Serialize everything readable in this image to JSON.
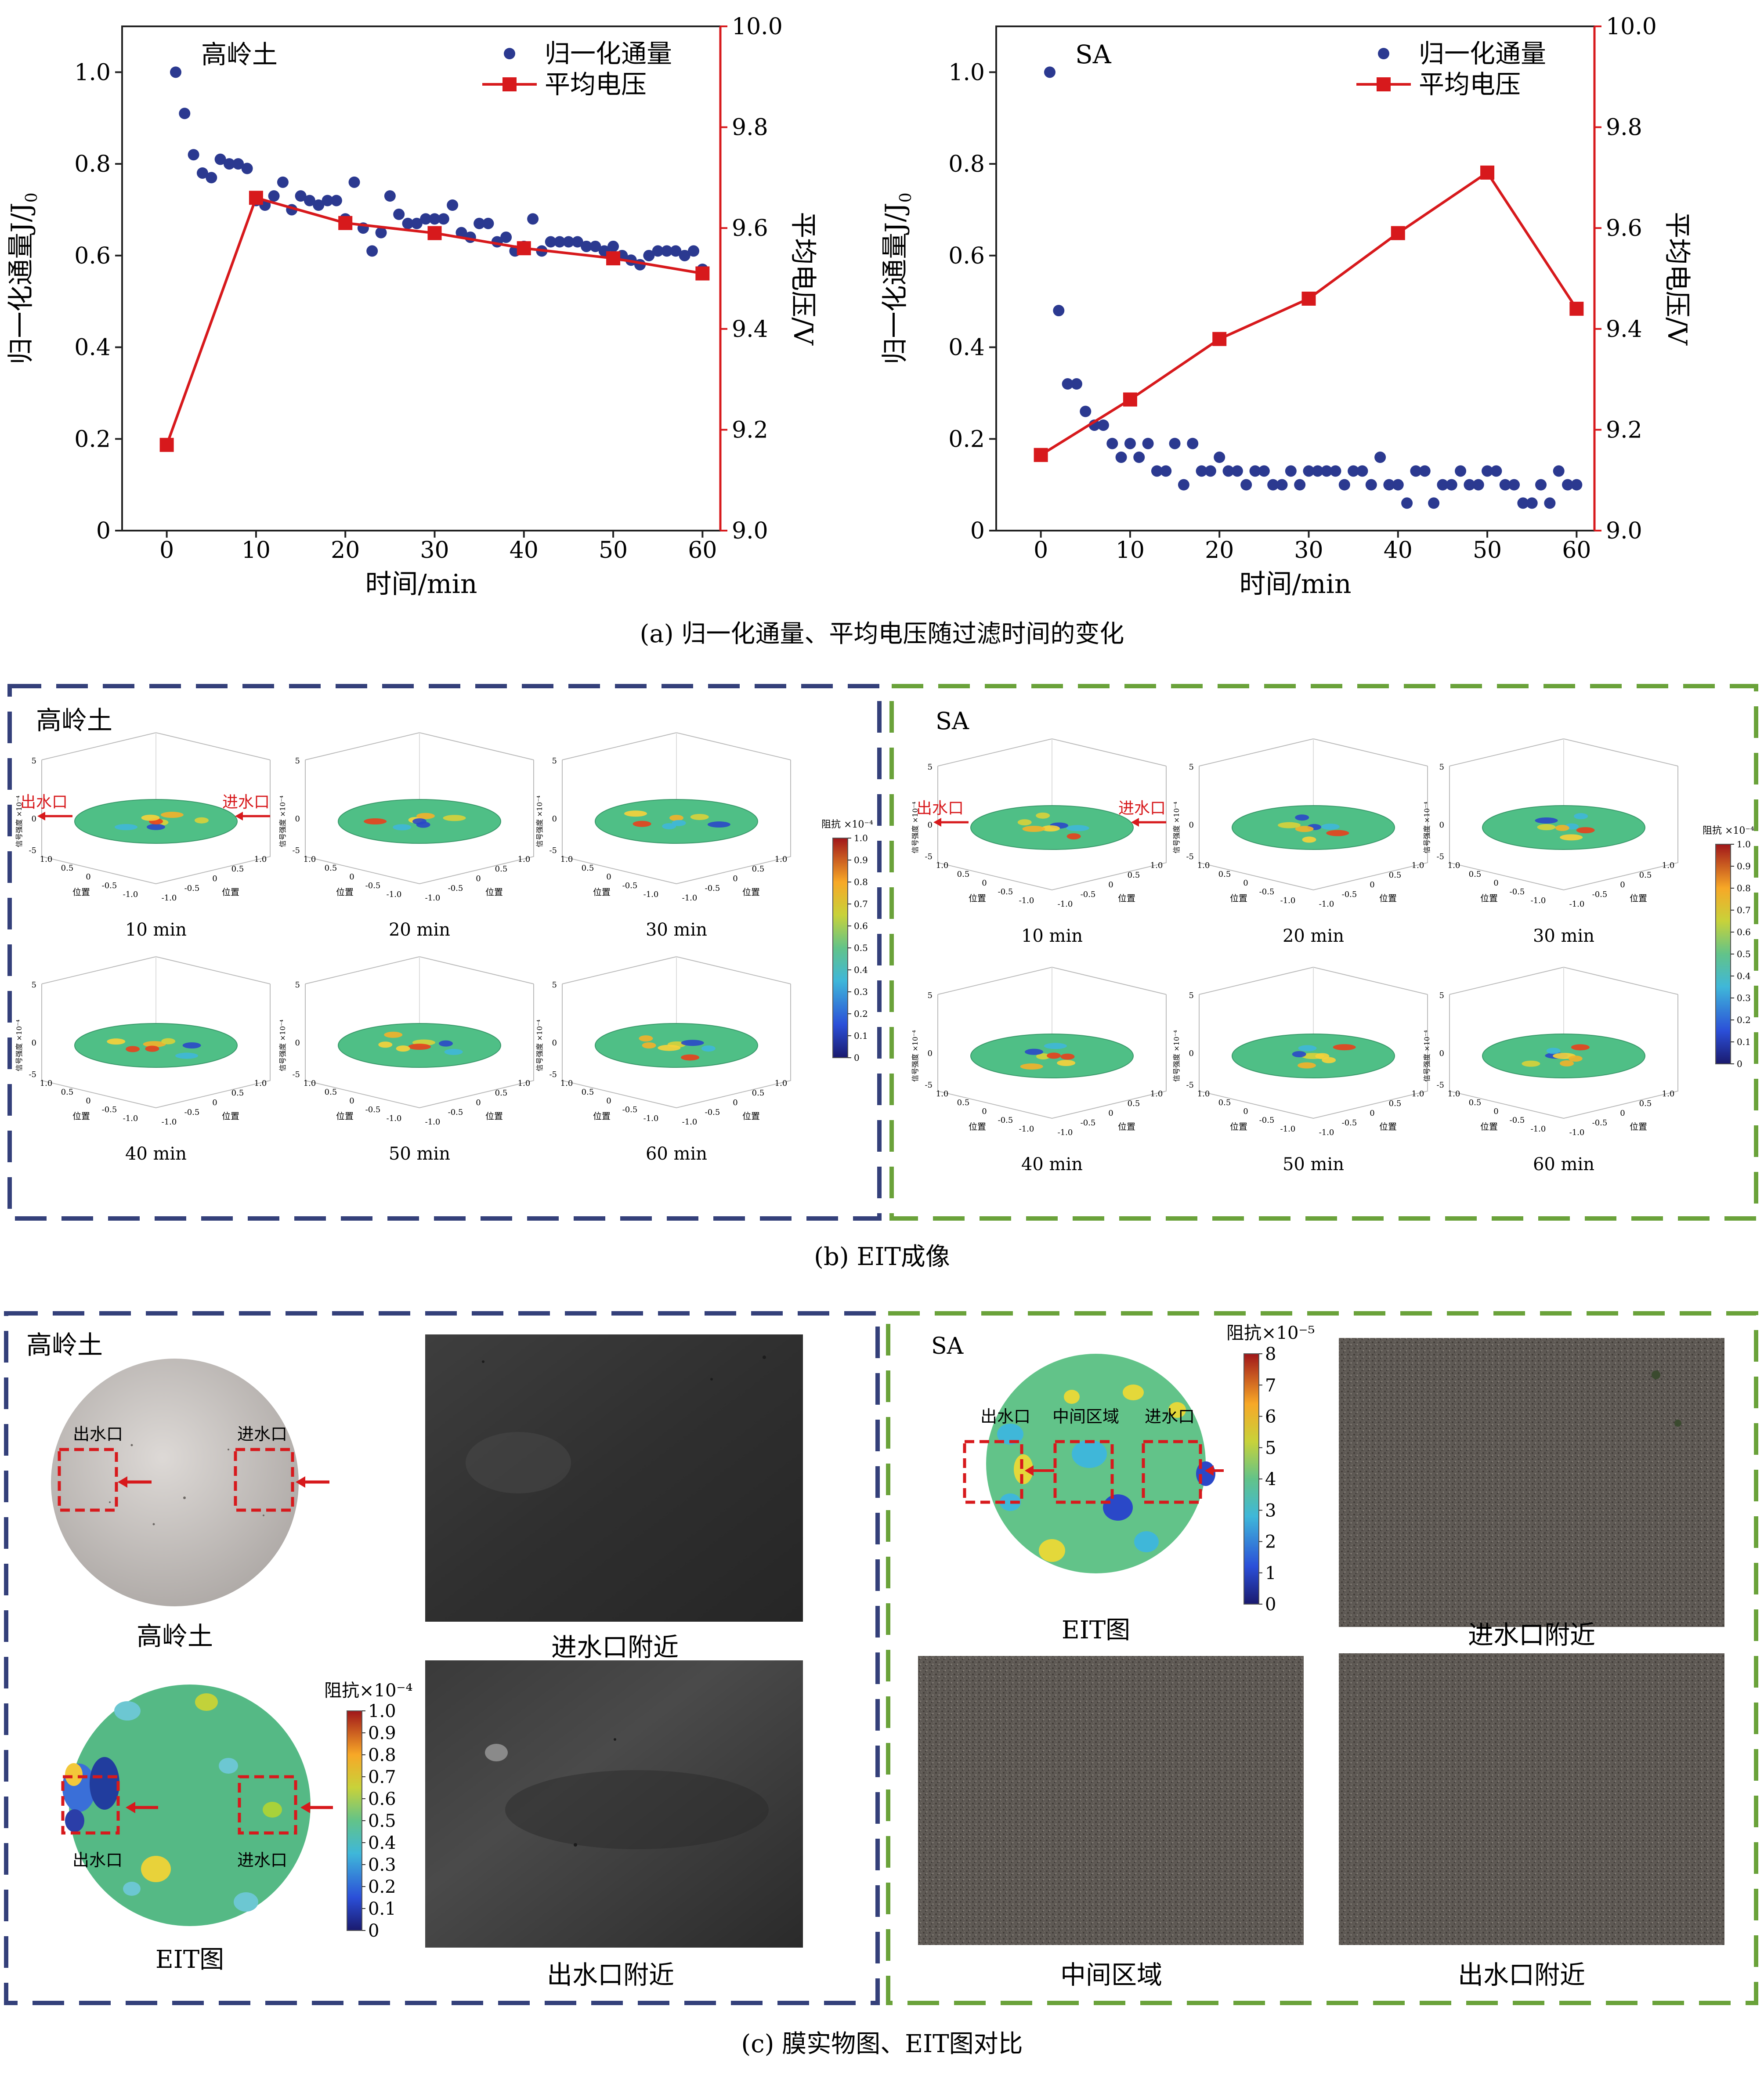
{
  "charts_row": {
    "left": {
      "title_label": "高岭土",
      "xlabel": "时间/min",
      "ylabel_left_main": "归一化通量J/J",
      "ylabel_left_sub": "0",
      "ylabel_right": "平均电压/V",
      "legend_flux": "归一化通量",
      "legend_voltage": "平均电压"
    },
    "right": {
      "title_label": "SA",
      "xlabel": "时间/min",
      "ylabel_left_main": "归一化通量J/J",
      "ylabel_left_sub": "0",
      "ylabel_right": "平均电压/V",
      "legend_flux": "归一化通量",
      "legend_voltage": "平均电压"
    },
    "caption": "(a) 归一化通量、平均电压随过滤时间的变化"
  },
  "chart_data": [
    {
      "type": "scatter+line",
      "title": "高岭土",
      "xlabel": "时间/min",
      "ylabel": "归一化通量J/J0",
      "y2label": "平均电压/V",
      "xlim": [
        -5,
        62
      ],
      "ylim": [
        0,
        1.1
      ],
      "y2lim": [
        9.0,
        10.0
      ],
      "xticks": [
        0,
        10,
        20,
        30,
        40,
        50,
        60
      ],
      "yticks": [
        0,
        0.2,
        0.4,
        0.6,
        0.8,
        1.0
      ],
      "y2ticks": [
        9.0,
        9.2,
        9.4,
        9.6,
        9.8,
        10.0
      ],
      "series": [
        {
          "name": "归一化通量",
          "axis": "left",
          "color": "#2b3990",
          "marker": "circle",
          "x": [
            1,
            2,
            3,
            4,
            5,
            6,
            7,
            8,
            9,
            10,
            11,
            12,
            13,
            14,
            15,
            16,
            17,
            18,
            19,
            20,
            21,
            22,
            23,
            24,
            25,
            26,
            27,
            28,
            29,
            30,
            31,
            32,
            33,
            34,
            35,
            36,
            37,
            38,
            39,
            40,
            41,
            42,
            43,
            44,
            45,
            46,
            47,
            48,
            49,
            50,
            51,
            52,
            53,
            54,
            55,
            56,
            57,
            58,
            59,
            60
          ],
          "y": [
            1.0,
            0.91,
            0.82,
            0.78,
            0.77,
            0.81,
            0.8,
            0.8,
            0.79,
            0.72,
            0.71,
            0.73,
            0.76,
            0.7,
            0.73,
            0.72,
            0.71,
            0.72,
            0.72,
            0.68,
            0.76,
            0.66,
            0.61,
            0.65,
            0.73,
            0.69,
            0.67,
            0.67,
            0.68,
            0.68,
            0.68,
            0.71,
            0.65,
            0.64,
            0.67,
            0.67,
            0.63,
            0.64,
            0.61,
            0.62,
            0.68,
            0.61,
            0.63,
            0.63,
            0.63,
            0.63,
            0.62,
            0.62,
            0.61,
            0.62,
            0.6,
            0.59,
            0.58,
            0.6,
            0.61,
            0.61,
            0.61,
            0.6,
            0.61,
            0.57
          ]
        },
        {
          "name": "平均电压",
          "axis": "right",
          "color": "#d7191c",
          "marker": "square",
          "x": [
            0,
            10,
            20,
            30,
            40,
            50,
            60
          ],
          "y": [
            9.17,
            9.66,
            9.61,
            9.59,
            9.56,
            9.54,
            9.51
          ]
        }
      ]
    },
    {
      "type": "scatter+line",
      "title": "SA",
      "xlabel": "时间/min",
      "ylabel": "归一化通量J/J0",
      "y2label": "平均电压/V",
      "xlim": [
        -5,
        62
      ],
      "ylim": [
        0,
        1.1
      ],
      "y2lim": [
        9.0,
        10.0
      ],
      "xticks": [
        0,
        10,
        20,
        30,
        40,
        50,
        60
      ],
      "yticks": [
        0,
        0.2,
        0.4,
        0.6,
        0.8,
        1.0
      ],
      "y2ticks": [
        9.0,
        9.2,
        9.4,
        9.6,
        9.8,
        10.0
      ],
      "series": [
        {
          "name": "归一化通量",
          "axis": "left",
          "color": "#2b3990",
          "marker": "circle",
          "x": [
            1,
            2,
            3,
            4,
            5,
            6,
            7,
            8,
            9,
            10,
            11,
            12,
            13,
            14,
            15,
            16,
            17,
            18,
            19,
            20,
            21,
            22,
            23,
            24,
            25,
            26,
            27,
            28,
            29,
            30,
            31,
            32,
            33,
            34,
            35,
            36,
            37,
            38,
            39,
            40,
            41,
            42,
            43,
            44,
            45,
            46,
            47,
            48,
            49,
            50,
            51,
            52,
            53,
            54,
            55,
            56,
            57,
            58,
            59,
            60
          ],
          "y": [
            1.0,
            0.48,
            0.32,
            0.32,
            0.26,
            0.23,
            0.23,
            0.19,
            0.16,
            0.19,
            0.16,
            0.19,
            0.13,
            0.13,
            0.19,
            0.1,
            0.19,
            0.13,
            0.13,
            0.16,
            0.13,
            0.13,
            0.1,
            0.13,
            0.13,
            0.1,
            0.1,
            0.13,
            0.1,
            0.13,
            0.13,
            0.13,
            0.13,
            0.1,
            0.13,
            0.13,
            0.1,
            0.16,
            0.1,
            0.1,
            0.06,
            0.13,
            0.13,
            0.06,
            0.1,
            0.1,
            0.13,
            0.1,
            0.1,
            0.13,
            0.13,
            0.1,
            0.1,
            0.06,
            0.06,
            0.1,
            0.06,
            0.13,
            0.1,
            0.1
          ]
        },
        {
          "name": "平均电压",
          "axis": "right",
          "color": "#d7191c",
          "marker": "square",
          "x": [
            0,
            10,
            20,
            30,
            40,
            50,
            60
          ],
          "y": [
            9.15,
            9.26,
            9.38,
            9.46,
            9.59,
            9.71,
            9.44
          ]
        }
      ]
    }
  ],
  "eit_row": {
    "left_group_label": "高岭土",
    "right_group_label": "SA",
    "outlet_label": "出水口",
    "inlet_label": "进水口",
    "times": [
      "10 min",
      "20 min",
      "30 min",
      "40 min",
      "50 min",
      "60 min"
    ],
    "axis_pos_label": "位置",
    "axis_sig_label": "信号强度 ×10⁻⁴",
    "z_ticks": [
      "5",
      "0",
      "-5"
    ],
    "xy_ticks": [
      "-1.0",
      "-0.5",
      "0",
      "0.5",
      "1.0"
    ],
    "colorbar_title": "阻抗 ×10⁻⁴",
    "colorbar_ticks": [
      "1.0",
      "0.9",
      "0.8",
      "0.7",
      "0.6",
      "0.5",
      "0.4",
      "0.3",
      "0.2",
      "0.1",
      "0"
    ],
    "caption": "(b)  EIT成像"
  },
  "photo_row": {
    "left": {
      "group_label": "高岭土",
      "membrane_outlet": "出水口",
      "membrane_inlet": "进水口",
      "membrane_caption": "高岭土",
      "eit_outlet": "出水口",
      "eit_inlet": "进水口",
      "eit_caption": "EIT图",
      "colorbar_title": "阻抗×10⁻⁴",
      "colorbar_ticks": [
        "1.0",
        "0.9",
        "0.8",
        "0.7",
        "0.6",
        "0.5",
        "0.4",
        "0.3",
        "0.2",
        "0.1",
        "0"
      ],
      "photo1_caption": "进水口附近",
      "photo2_caption": "出水口附近"
    },
    "right": {
      "group_label": "SA",
      "eit_outlet": "出水口",
      "eit_middle": "中间区域",
      "eit_inlet": "进水口",
      "eit_caption": "EIT图",
      "colorbar_title": "阻抗×10⁻⁵",
      "colorbar_ticks": [
        "8",
        "7",
        "6",
        "5",
        "4",
        "3",
        "2",
        "1",
        "0"
      ],
      "photo1_caption": "进水口附近",
      "photo2_caption": "中间区域",
      "photo3_caption": "出水口附近"
    },
    "caption": "(c)  膜实物图、EIT图对比"
  },
  "colors": {
    "flux": "#2b3990",
    "voltage": "#d7191c",
    "frame_left": "#34407a",
    "frame_right": "#6aa23a"
  }
}
